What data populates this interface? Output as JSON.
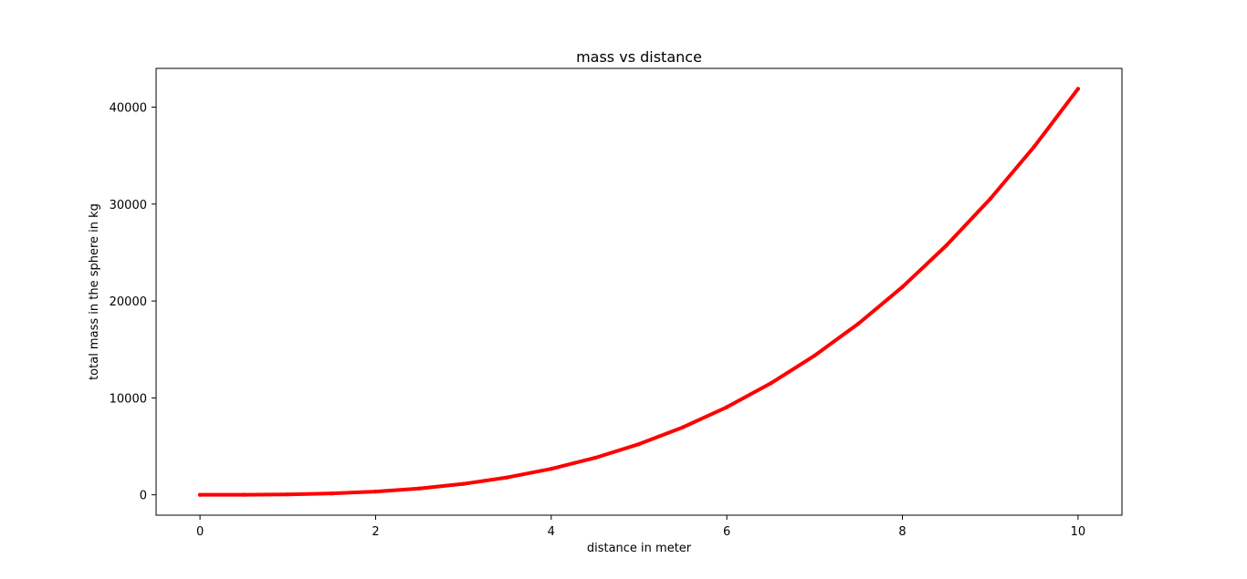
{
  "chart_data": {
    "type": "scatter",
    "title": "mass vs distance",
    "xlabel": "distance in meter",
    "ylabel": "total mass in the sphere in kg",
    "xlim": [
      -0.5,
      10.5
    ],
    "ylim": [
      -2100,
      44000
    ],
    "xticks": [
      0,
      2,
      4,
      6,
      8,
      10
    ],
    "yticks": [
      0,
      10000,
      20000,
      30000,
      40000
    ],
    "grid": false,
    "color": "#ff0000",
    "series": [
      {
        "x": [
          0,
          0.5,
          1,
          1.5,
          2,
          2.5,
          3,
          3.5,
          4,
          4.5,
          5,
          5.5,
          6,
          6.5,
          7,
          7.5,
          8,
          8.5,
          9,
          9.5,
          10
        ],
        "values": [
          0,
          5,
          42,
          141,
          335,
          654,
          1131,
          1796,
          2681,
          3817,
          5236,
          6969,
          9048,
          11503,
          14368,
          17671,
          21447,
          25724,
          30536,
          35914,
          41888
        ]
      }
    ]
  }
}
